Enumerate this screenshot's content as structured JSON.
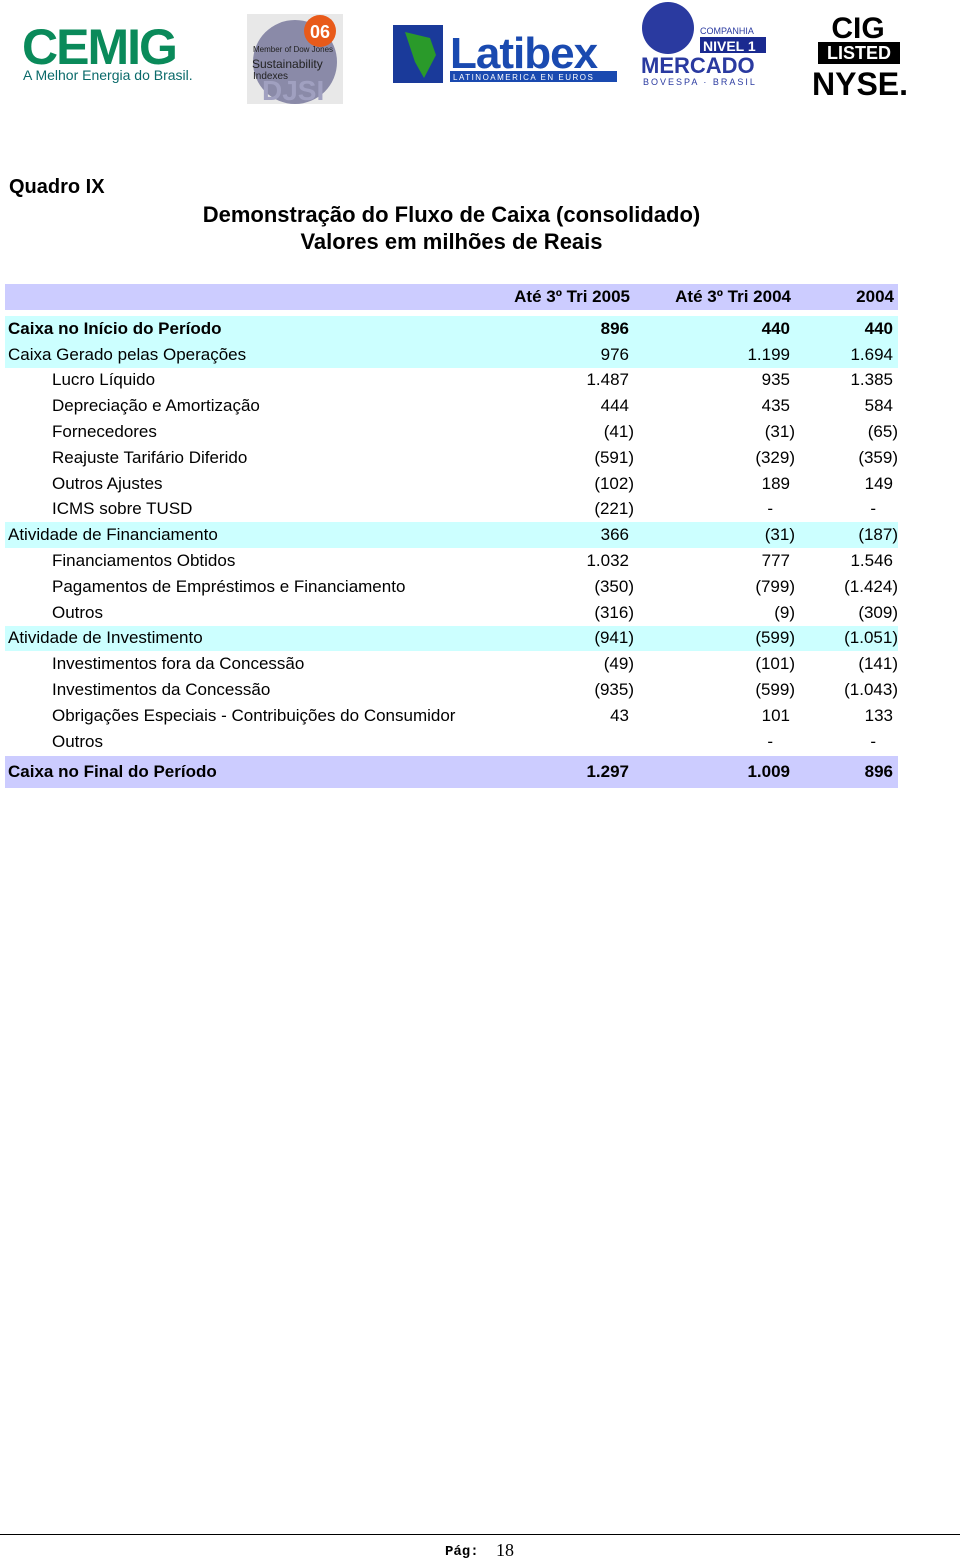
{
  "header": {
    "logos": {
      "cemig": {
        "name": "CEMIG",
        "tagline": "A Melhor Energia do Brasil."
      },
      "djsi": {
        "member": "Member of Dow Jones",
        "index": "Sustainability",
        "indexes": "Indexes",
        "year": "06",
        "mark": "DJSI"
      },
      "latibex": {
        "name": "Latibex",
        "tagline": "LATINOAMERICA EN EUROS"
      },
      "bovespa": {
        "company": "COMPANHIA",
        "level": "NIVEL 1",
        "market": "MERCADO",
        "tagline": "BOVESPA · BRASIL"
      },
      "nyse": {
        "ticker": "CIG",
        "listed": "LISTED",
        "exchange": "NYSE."
      }
    }
  },
  "document": {
    "section": "Quadro IX",
    "title": "Demonstração do Fluxo de Caixa (consolidado)",
    "subtitle": "Valores em milhões de Reais"
  },
  "table": {
    "columns": [
      "Até 3º Tri 2005",
      "Até 3º Tri 2004",
      "2004"
    ],
    "rows": [
      [
        "Caixa no Início do Período",
        "896",
        "440",
        "440"
      ],
      [
        "Caixa Gerado pelas Operações",
        "976",
        "1.199",
        "1.694"
      ],
      [
        "Lucro Líquido",
        "1.487",
        "935",
        "1.385"
      ],
      [
        "Depreciação e Amortização",
        "444",
        "435",
        "584"
      ],
      [
        "Fornecedores",
        "(41)",
        "(31)",
        "(65)"
      ],
      [
        "Reajuste Tarifário Diferido",
        "(591)",
        "(329)",
        "(359)"
      ],
      [
        "Outros Ajustes",
        "(102)",
        "189",
        "149"
      ],
      [
        "ICMS sobre TUSD",
        "(221)",
        "-",
        "-"
      ],
      [
        "Atividade de Financiamento",
        "366",
        "(31)",
        "(187)"
      ],
      [
        "Financiamentos Obtidos",
        "1.032",
        "777",
        "1.546"
      ],
      [
        "Pagamentos de Empréstimos e Financiamento",
        "(350)",
        "(799)",
        "(1.424)"
      ],
      [
        "Outros",
        "(316)",
        "(9)",
        "(309)"
      ],
      [
        "Atividade de Investimento",
        "(941)",
        "(599)",
        "(1.051)"
      ],
      [
        "Investimentos fora da Concessão",
        "(49)",
        "(101)",
        "(141)"
      ],
      [
        "Investimentos da Concessão",
        "(935)",
        "(599)",
        "(1.043)"
      ],
      [
        "Obrigações Especiais - Contribuições do Consumidor",
        "43",
        "101",
        "133"
      ],
      [
        "Outros",
        null,
        "-",
        "-"
      ]
    ],
    "total": [
      "Caixa no Final do Período",
      "1.297",
      "1.009",
      "896"
    ]
  },
  "footer": {
    "label": "Pág:",
    "page": "18"
  }
}
